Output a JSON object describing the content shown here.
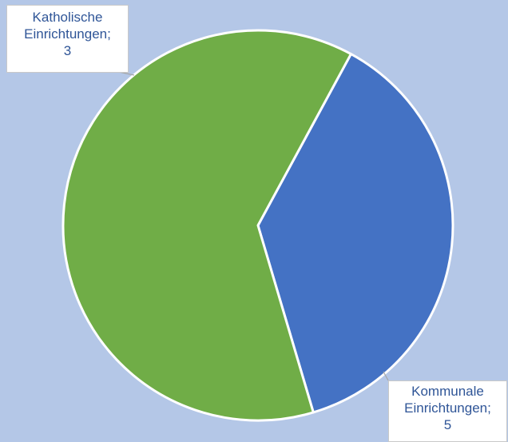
{
  "chart_data": {
    "type": "pie",
    "title": "",
    "slices": [
      {
        "label": "Katholische Einrichtungen",
        "value": 3,
        "label_text": {
          "line1": "Katholische",
          "line2": "Einrichtungen;",
          "line3": "3"
        },
        "color": "#4472c4"
      },
      {
        "label": "Kommunale Einrichtungen",
        "value": 5,
        "label_text": {
          "line1": "Kommunale",
          "line2": "Einrichtungen;",
          "line3": "5"
        },
        "color": "#70ad47"
      }
    ],
    "legend": "none",
    "data_labels": "callout"
  },
  "colors": {
    "background": "#b4c7e7",
    "label_text": "#2f5597"
  }
}
